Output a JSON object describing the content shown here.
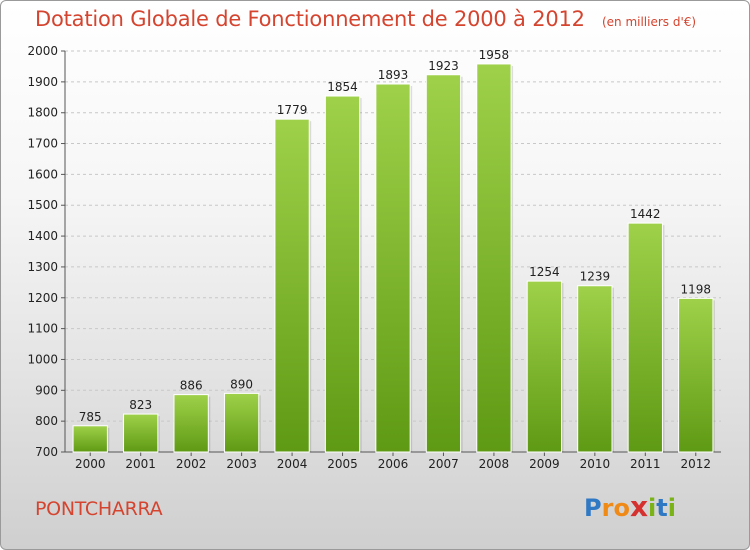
{
  "chart_data": {
    "type": "bar",
    "title": "Dotation Globale de Fonctionnement de 2000 à 2012",
    "subtitle": "(en milliers d'€)",
    "categories": [
      "2000",
      "2001",
      "2002",
      "2003",
      "2004",
      "2005",
      "2006",
      "2007",
      "2008",
      "2009",
      "2010",
      "2011",
      "2012"
    ],
    "values": [
      785,
      823,
      886,
      890,
      1779,
      1854,
      1893,
      1923,
      1958,
      1254,
      1239,
      1442,
      1198
    ],
    "ylim": [
      700,
      2000
    ],
    "yticks": [
      700,
      800,
      900,
      1000,
      1100,
      1200,
      1300,
      1400,
      1500,
      1600,
      1700,
      1800,
      1900,
      2000
    ],
    "grid": true,
    "legend": "none",
    "xlabel": "",
    "ylabel": ""
  },
  "footer": {
    "town": "PONTCHARRA",
    "logo_letters": [
      "P",
      "r",
      "o",
      "x",
      "i",
      "t",
      "i"
    ]
  },
  "colors": {
    "accent_text": "#d4442f",
    "bar_top": "#9fd14a",
    "bar_bottom": "#5f9a14",
    "logo": [
      "#2f78c4",
      "#f08a17",
      "#f08a17",
      "#d4312f",
      "#7ab317",
      "#2f78c4",
      "#7ab317"
    ]
  }
}
